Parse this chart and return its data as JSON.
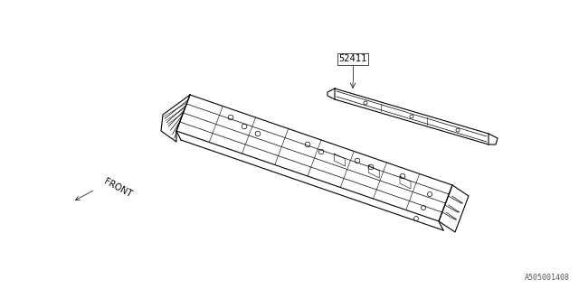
{
  "bg_color": "#ffffff",
  "line_color": "#000000",
  "text_color": "#000000",
  "part_number": "52411",
  "front_label": "FRONT",
  "diagram_id": "A505001408",
  "figsize": [
    6.4,
    3.2
  ],
  "dpi": 100
}
